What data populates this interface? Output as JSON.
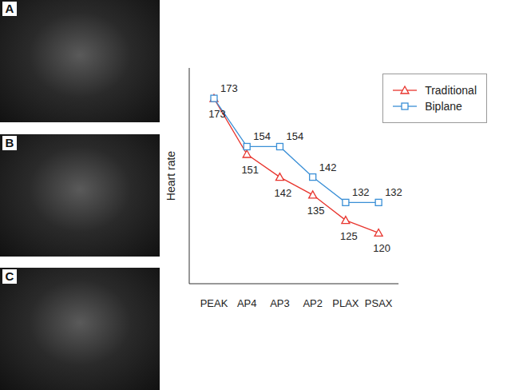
{
  "panels": [
    "A",
    "B",
    "C"
  ],
  "chart_data": {
    "type": "line",
    "y_label": "Heart rate",
    "categories": [
      "PEAK",
      "AP4",
      "AP3",
      "AP2",
      "PLAX",
      "PSAX"
    ],
    "series": [
      {
        "name": "Traditional",
        "color": "#e8352e",
        "marker": "triangle",
        "values": [
          173,
          151,
          142,
          135,
          125,
          120
        ]
      },
      {
        "name": "Biplane",
        "color": "#3a8fd6",
        "marker": "square",
        "values": [
          173,
          154,
          154,
          142,
          132,
          132
        ]
      }
    ],
    "ylim": [
      100,
      185
    ],
    "yticks": [],
    "grid": false,
    "legend": "upper right",
    "data_labels": true,
    "tick_labels": "x"
  }
}
